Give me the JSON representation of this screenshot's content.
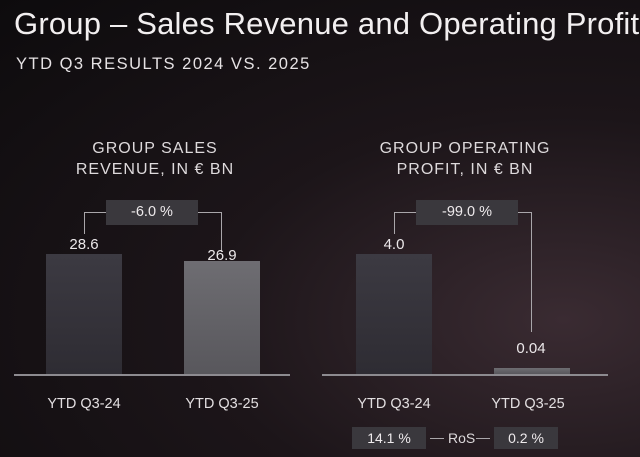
{
  "header": {
    "title": "Group – Sales Revenue and Operating Profit",
    "subtitle": "YTD Q3 RESULTS 2024 VS. 2025"
  },
  "chart_data": [
    {
      "type": "bar",
      "title_lines": [
        "GROUP SALES",
        "REVENUE, IN € BN"
      ],
      "categories": [
        "YTD Q3-24",
        "YTD Q3-25"
      ],
      "values": [
        28.6,
        26.9
      ],
      "value_labels": [
        "28.6",
        "26.9"
      ],
      "delta_label": "-6.0 %",
      "ylim": [
        0,
        28.6
      ]
    },
    {
      "type": "bar",
      "title_lines": [
        "GROUP OPERATING",
        "PROFIT, IN € BN"
      ],
      "categories": [
        "YTD Q3-24",
        "YTD Q3-25"
      ],
      "values": [
        4.0,
        0.04
      ],
      "value_labels": [
        "4.0",
        "0.04"
      ],
      "delta_label": "-99.0 %",
      "ylim": [
        0,
        4.0
      ]
    }
  ],
  "ros": {
    "label": "RoS",
    "values": [
      "14.1 %",
      "0.2 %"
    ]
  }
}
